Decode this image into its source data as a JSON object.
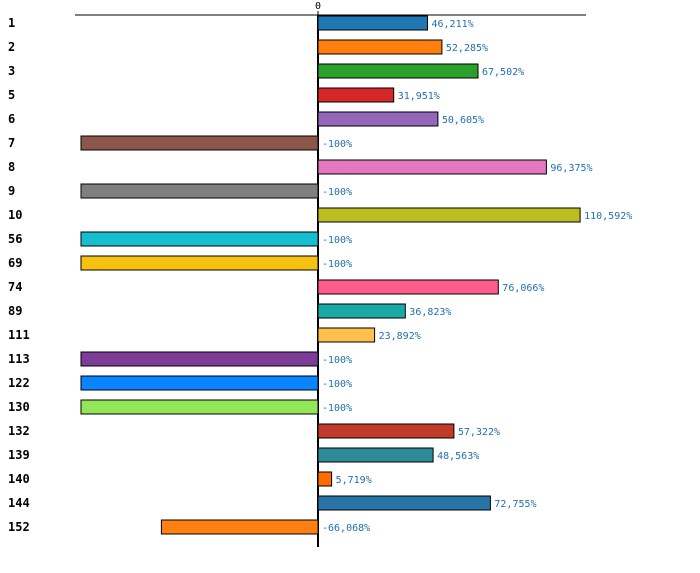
{
  "chart_data": {
    "type": "bar",
    "orientation": "horizontal",
    "title": "",
    "xlabel": "",
    "ylabel": "",
    "zero_tick_label": "0",
    "xlim": [
      -100,
      110.592
    ],
    "grid": false,
    "legend": "none",
    "categories": [
      "1",
      "2",
      "3",
      "5",
      "6",
      "7",
      "8",
      "9",
      "10",
      "56",
      "69",
      "74",
      "89",
      "111",
      "113",
      "122",
      "130",
      "132",
      "139",
      "140",
      "144",
      "152"
    ],
    "values": [
      46.211,
      52.285,
      67.502,
      31.951,
      50.605,
      -100,
      96.375,
      -100,
      110.592,
      -100,
      -100,
      76.066,
      36.823,
      23.892,
      -100,
      -100,
      -100,
      57.322,
      48.563,
      5.719,
      72.755,
      -66.068
    ],
    "value_labels": [
      "46,211%",
      "52,285%",
      "67,502%",
      "31,951%",
      "50,605%",
      "-100%",
      "96,375%",
      "-100%",
      "110,592%",
      "-100%",
      "-100%",
      "76,066%",
      "36,823%",
      "23,892%",
      "-100%",
      "-100%",
      "-100%",
      "57,322%",
      "48,563%",
      "5,719%",
      "72,755%",
      "-66,068%"
    ],
    "colors": [
      "#1f77b4",
      "#ff7f0e",
      "#2ca02c",
      "#d62728",
      "#9467bd",
      "#8c564b",
      "#e377c2",
      "#7f7f7f",
      "#bcbd22",
      "#17becf",
      "#f5c211",
      "#ff5c8d",
      "#19aaa5",
      "#ffc14d",
      "#7d3c98",
      "#0a84ff",
      "#93e55a",
      "#c0392b",
      "#2e8b9a",
      "#ff6d00",
      "#2874a6",
      "#ff8012"
    ]
  }
}
